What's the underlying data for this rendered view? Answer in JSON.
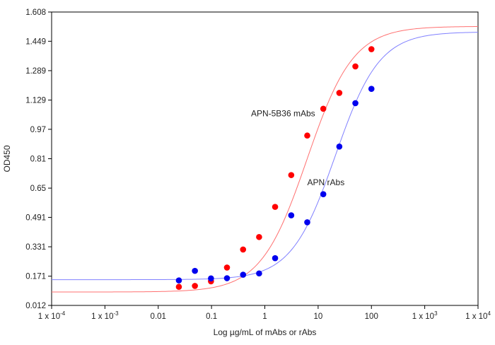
{
  "chart_data": {
    "type": "scatter",
    "xscale": "log",
    "xlim": [
      0.0001,
      10000
    ],
    "ylim": [
      0.012,
      1.608
    ],
    "xlabel": "Log µg/mL of mAbs or rAbs",
    "ylabel": "OD450",
    "grid": false,
    "legend": "none",
    "x_ticks": [
      {
        "value": 0.0001,
        "base": "1 x 10",
        "exp": "-4"
      },
      {
        "value": 0.001,
        "base": "1 x 10",
        "exp": "-3"
      },
      {
        "value": 0.01,
        "base": "0.01",
        "exp": ""
      },
      {
        "value": 0.1,
        "base": "0.1",
        "exp": ""
      },
      {
        "value": 1,
        "base": "1",
        "exp": ""
      },
      {
        "value": 10,
        "base": "10",
        "exp": ""
      },
      {
        "value": 100,
        "base": "100",
        "exp": ""
      },
      {
        "value": 1000,
        "base": "1 x 10",
        "exp": "3"
      },
      {
        "value": 10000,
        "base": "1 x 10",
        "exp": "4"
      }
    ],
    "y_ticks": [
      "0.012",
      "0.171",
      "0.331",
      "0.491",
      "0.65",
      "0.81",
      "0.97",
      "1.129",
      "1.289",
      "1.449",
      "1.608"
    ],
    "series": [
      {
        "name": "APN-5B36 mAbs",
        "color": "#ff0000",
        "curve_color": "#ff7070",
        "label_at": {
          "x": 2.2,
          "y": 1.04
        },
        "points": [
          {
            "x": 0.0244,
            "y": 0.113
          },
          {
            "x": 0.0488,
            "y": 0.118
          },
          {
            "x": 0.0977,
            "y": 0.143
          },
          {
            "x": 0.195,
            "y": 0.218
          },
          {
            "x": 0.391,
            "y": 0.316
          },
          {
            "x": 0.781,
            "y": 0.384
          },
          {
            "x": 1.56,
            "y": 0.548
          },
          {
            "x": 3.13,
            "y": 0.721
          },
          {
            "x": 6.25,
            "y": 0.936
          },
          {
            "x": 12.5,
            "y": 1.082
          },
          {
            "x": 25,
            "y": 1.168
          },
          {
            "x": 50,
            "y": 1.312
          },
          {
            "x": 100,
            "y": 1.406
          }
        ],
        "fit": {
          "bottom": 0.085,
          "top": 1.53,
          "ec50": 6.2,
          "hill": 1.0
        }
      },
      {
        "name": "APN rAbs",
        "color": "#0000ee",
        "curve_color": "#8080ff",
        "label_at": {
          "x": 14,
          "y": 0.665
        },
        "points": [
          {
            "x": 0.0244,
            "y": 0.148
          },
          {
            "x": 0.0488,
            "y": 0.2
          },
          {
            "x": 0.0977,
            "y": 0.159
          },
          {
            "x": 0.195,
            "y": 0.16
          },
          {
            "x": 0.391,
            "y": 0.179
          },
          {
            "x": 0.781,
            "y": 0.186
          },
          {
            "x": 1.56,
            "y": 0.269
          },
          {
            "x": 3.13,
            "y": 0.502
          },
          {
            "x": 6.25,
            "y": 0.464
          },
          {
            "x": 12.5,
            "y": 0.617
          },
          {
            "x": 25,
            "y": 0.876
          },
          {
            "x": 50,
            "y": 1.112
          },
          {
            "x": 100,
            "y": 1.19
          }
        ],
        "fit": {
          "bottom": 0.152,
          "top": 1.5,
          "ec50": 21,
          "hill": 1.05
        }
      }
    ]
  }
}
